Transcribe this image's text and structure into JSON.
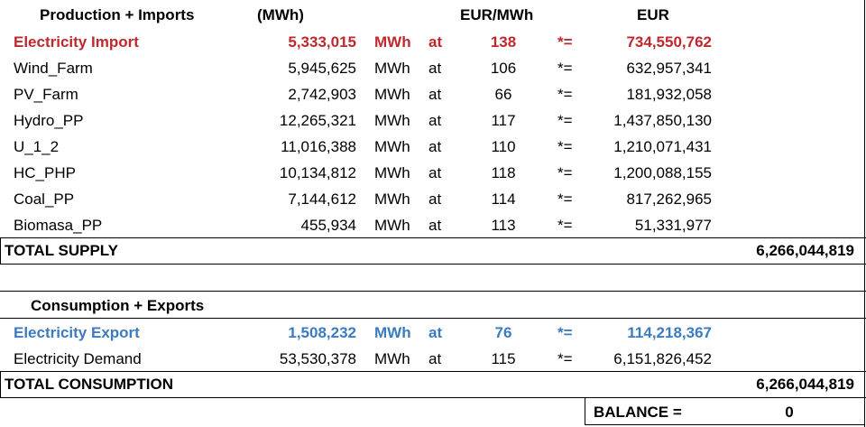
{
  "header": {
    "section": "Production + Imports",
    "mwh": "(MWh)",
    "price": "EUR/MWh",
    "eur": "EUR"
  },
  "supply_rows": [
    {
      "name": "Electricity Import",
      "mwh": "5,333,015",
      "unit": "MWh",
      "at": "at",
      "price": "138",
      "op": "*=",
      "eur": "734,550,762",
      "color": "#c0282d"
    },
    {
      "name": "Wind_Farm",
      "mwh": "5,945,625",
      "unit": "MWh",
      "at": "at",
      "price": "106",
      "op": "*=",
      "eur": "632,957,341"
    },
    {
      "name": "PV_Farm",
      "mwh": "2,742,903",
      "unit": "MWh",
      "at": "at",
      "price": "66",
      "op": "*=",
      "eur": "181,932,058"
    },
    {
      "name": "Hydro_PP",
      "mwh": "12,265,321",
      "unit": "MWh",
      "at": "at",
      "price": "117",
      "op": "*=",
      "eur": "1,437,850,130"
    },
    {
      "name": "U_1_2",
      "mwh": "11,016,388",
      "unit": "MWh",
      "at": "at",
      "price": "110",
      "op": "*=",
      "eur": "1,210,071,431"
    },
    {
      "name": "HC_PHP",
      "mwh": "10,134,812",
      "unit": "MWh",
      "at": "at",
      "price": "118",
      "op": "*=",
      "eur": "1,200,088,155"
    },
    {
      "name": "Coal_PP",
      "mwh": "7,144,612",
      "unit": "MWh",
      "at": "at",
      "price": "114",
      "op": "*=",
      "eur": "817,262,965"
    },
    {
      "name": "Biomasa_PP",
      "mwh": "455,934",
      "unit": "MWh",
      "at": "at",
      "price": "113",
      "op": "*=",
      "eur": "51,331,977"
    }
  ],
  "total_supply": {
    "label": "TOTAL SUPPLY",
    "value": "6,266,044,819"
  },
  "consumption_header": "Consumption + Exports",
  "consumption_rows": [
    {
      "name": "Electricity Export",
      "mwh": "1,508,232",
      "unit": "MWh",
      "at": "at",
      "price": "76",
      "op": "*=",
      "eur": "114,218,367",
      "color": "#3c7bbf"
    },
    {
      "name": "Electricity Demand",
      "mwh": "53,530,378",
      "unit": "MWh",
      "at": "at",
      "price": "115",
      "op": "*=",
      "eur": "6,151,826,452"
    }
  ],
  "total_consumption": {
    "label": "TOTAL CONSUMPTION",
    "value": "6,266,044,819"
  },
  "balance": {
    "label": "BALANCE =",
    "value": "0"
  }
}
